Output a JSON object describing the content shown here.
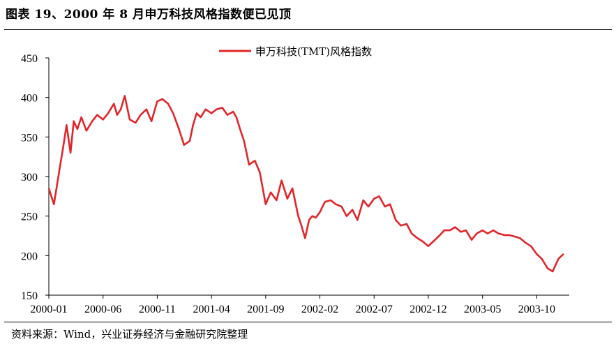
{
  "title": "图表 19、2000 年 8 月申万科技风格指数便已见顶",
  "source": "资料来源：Wind，兴业证券经济与金融研究院整理",
  "colors": {
    "series": "#e0262a",
    "axis": "#000000"
  },
  "chart_data": {
    "type": "line",
    "title": "",
    "xlabel": "",
    "ylabel": "",
    "ylim": [
      150,
      450
    ],
    "yticks": [
      150,
      200,
      250,
      300,
      350,
      400,
      450
    ],
    "xlim": [
      "2000-01",
      "2004-01"
    ],
    "xticks": [
      "2000-01",
      "2000-06",
      "2000-11",
      "2001-04",
      "2001-09",
      "2002-02",
      "2002-07",
      "2002-12",
      "2003-05",
      "2003-10"
    ],
    "grid": false,
    "legend": "top-center",
    "series": [
      {
        "name": "申万科技(TMT)风格指数",
        "x": [
          "2000-01",
          "2000-01-15",
          "2000-02",
          "2000-02-10",
          "2000-02-20",
          "2000-03",
          "2000-03-10",
          "2000-03-20",
          "2000-04",
          "2000-04-15",
          "2000-05",
          "2000-05-15",
          "2000-06",
          "2000-06-15",
          "2000-07",
          "2000-07-10",
          "2000-07-20",
          "2000-08",
          "2000-08-15",
          "2000-09",
          "2000-09-15",
          "2000-10",
          "2000-10-15",
          "2000-11",
          "2000-11-15",
          "2000-12",
          "2000-12-15",
          "2001-01",
          "2001-01-15",
          "2001-02",
          "2001-02-10",
          "2001-02-20",
          "2001-03",
          "2001-03-15",
          "2001-04",
          "2001-04-15",
          "2001-05",
          "2001-05-15",
          "2001-06",
          "2001-06-10",
          "2001-06-20",
          "2001-07",
          "2001-07-15",
          "2001-08",
          "2001-08-15",
          "2001-09",
          "2001-09-15",
          "2001-10",
          "2001-10-15",
          "2001-11",
          "2001-11-15",
          "2001-12",
          "2001-12-10",
          "2001-12-20",
          "2002-01",
          "2002-01-10",
          "2002-01-20",
          "2002-02",
          "2002-02-15",
          "2002-03",
          "2002-03-15",
          "2002-04",
          "2002-04-15",
          "2002-05",
          "2002-05-15",
          "2002-06",
          "2002-06-15",
          "2002-07",
          "2002-07-15",
          "2002-08",
          "2002-08-15",
          "2002-09",
          "2002-09-15",
          "2002-10",
          "2002-10-15",
          "2002-11",
          "2002-11-15",
          "2002-12",
          "2002-12-15",
          "2003-01",
          "2003-01-15",
          "2003-02",
          "2003-02-15",
          "2003-03",
          "2003-03-15",
          "2003-04",
          "2003-04-15",
          "2003-05",
          "2003-05-15",
          "2003-06",
          "2003-06-15",
          "2003-07",
          "2003-07-15",
          "2003-08",
          "2003-08-15",
          "2003-09",
          "2003-09-15",
          "2003-10",
          "2003-10-15",
          "2003-11",
          "2003-11-15",
          "2003-12",
          "2003-12-15"
        ],
        "values": [
          285,
          265,
          310,
          335,
          365,
          330,
          370,
          360,
          375,
          358,
          370,
          378,
          372,
          380,
          392,
          378,
          385,
          402,
          372,
          368,
          378,
          385,
          370,
          395,
          398,
          392,
          380,
          360,
          340,
          345,
          365,
          380,
          375,
          385,
          380,
          385,
          387,
          378,
          382,
          375,
          360,
          345,
          315,
          320,
          305,
          265,
          280,
          270,
          295,
          272,
          285,
          250,
          238,
          222,
          245,
          250,
          248,
          255,
          268,
          270,
          265,
          262,
          250,
          258,
          245,
          270,
          262,
          272,
          275,
          262,
          265,
          245,
          238,
          240,
          228,
          222,
          218,
          212,
          218,
          225,
          232,
          232,
          236,
          230,
          232,
          220,
          228,
          232,
          228,
          232,
          228,
          226,
          226,
          224,
          222,
          216,
          212,
          202,
          196,
          184,
          180,
          196,
          202
        ]
      }
    ]
  }
}
